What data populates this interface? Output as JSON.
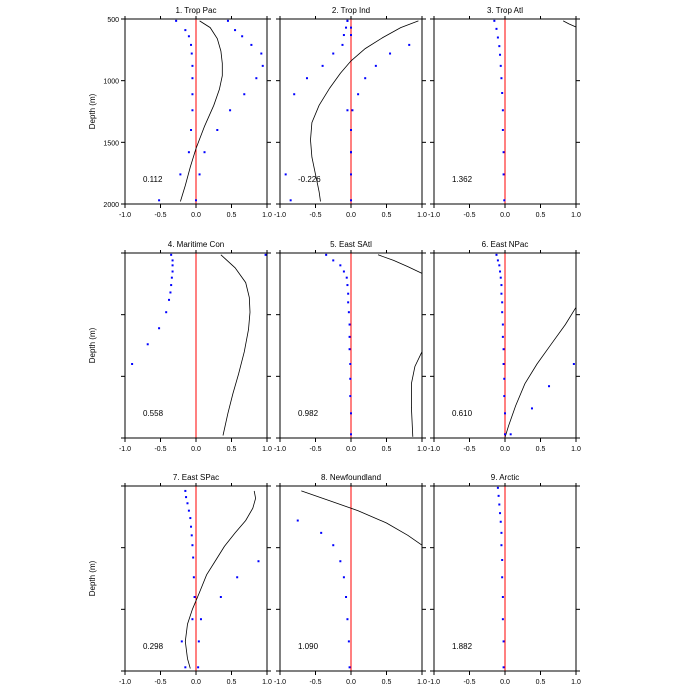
{
  "y_axis_title": "Depth (m)",
  "colors": {
    "zero_line": "#ff0000",
    "points": "#0000ff",
    "curve": "#000000"
  },
  "chart_data": [
    {
      "type": "scatter",
      "title": "1. Trop Pac",
      "annotation": "0.112",
      "xlim": [
        -1.0,
        1.0
      ],
      "ylim": [
        2000,
        500
      ],
      "xticks": [
        "-1.0",
        "-0.5",
        "0.0",
        "0.5",
        "1.0"
      ],
      "yticks": [
        "500",
        "1000",
        "1500",
        "2000"
      ],
      "ylabel": "Depth (m)",
      "points": [
        [
          -0.28,
          515
        ],
        [
          0.45,
          515
        ],
        [
          -0.15,
          590
        ],
        [
          0.55,
          590
        ],
        [
          -0.1,
          640
        ],
        [
          0.65,
          640
        ],
        [
          -0.07,
          710
        ],
        [
          0.78,
          710
        ],
        [
          -0.06,
          780
        ],
        [
          0.92,
          780
        ],
        [
          -0.05,
          880
        ],
        [
          0.94,
          880
        ],
        [
          -0.05,
          980
        ],
        [
          0.85,
          980
        ],
        [
          -0.05,
          1110
        ],
        [
          0.68,
          1110
        ],
        [
          -0.05,
          1240
        ],
        [
          0.48,
          1240
        ],
        [
          -0.07,
          1400
        ],
        [
          0.3,
          1400
        ],
        [
          -0.1,
          1580
        ],
        [
          0.12,
          1580
        ],
        [
          -0.22,
          1760
        ],
        [
          0.05,
          1760
        ],
        [
          -0.52,
          1970
        ],
        [
          0.0,
          1970
        ]
      ],
      "curve": [
        [
          0.05,
          515
        ],
        [
          0.2,
          570
        ],
        [
          0.3,
          660
        ],
        [
          0.35,
          760
        ],
        [
          0.37,
          860
        ],
        [
          0.37,
          960
        ],
        [
          0.33,
          1070
        ],
        [
          0.25,
          1200
        ],
        [
          0.12,
          1370
        ],
        [
          0.0,
          1550
        ],
        [
          -0.08,
          1700
        ],
        [
          -0.15,
          1850
        ],
        [
          -0.22,
          1980
        ]
      ]
    },
    {
      "type": "scatter",
      "title": "2. Trop Ind",
      "annotation": "-0.226",
      "xlim": [
        -1.0,
        1.0
      ],
      "ylim": [
        2000,
        500
      ],
      "xticks": [
        "-1.0",
        "-0.5",
        "0.0",
        "0.5",
        "1.0"
      ],
      "points": [
        [
          -0.05,
          515
        ],
        [
          -0.05,
          515
        ],
        [
          -0.07,
          570
        ],
        [
          0.0,
          570
        ],
        [
          -0.1,
          630
        ],
        [
          0.0,
          630
        ],
        [
          -0.12,
          710
        ],
        [
          0.82,
          710
        ],
        [
          -0.25,
          780
        ],
        [
          0.55,
          780
        ],
        [
          -0.4,
          880
        ],
        [
          0.35,
          880
        ],
        [
          -0.62,
          980
        ],
        [
          0.2,
          980
        ],
        [
          -0.8,
          1110
        ],
        [
          0.1,
          1110
        ],
        [
          -0.05,
          1240
        ],
        [
          0.02,
          1240
        ],
        [
          0.0,
          1400
        ],
        [
          0.0,
          1400
        ],
        [
          0.0,
          1580
        ],
        [
          0.0,
          1580
        ],
        [
          -0.92,
          1760
        ],
        [
          0.0,
          1760
        ],
        [
          -0.85,
          1970
        ],
        [
          0.0,
          1970
        ]
      ],
      "curve": [
        [
          0.95,
          515
        ],
        [
          0.7,
          570
        ],
        [
          0.45,
          650
        ],
        [
          0.2,
          740
        ],
        [
          0.0,
          840
        ],
        [
          -0.15,
          940
        ],
        [
          -0.3,
          1060
        ],
        [
          -0.45,
          1200
        ],
        [
          -0.55,
          1340
        ],
        [
          -0.57,
          1480
        ],
        [
          -0.55,
          1620
        ],
        [
          -0.5,
          1760
        ],
        [
          -0.45,
          1900
        ],
        [
          -0.43,
          1980
        ]
      ]
    },
    {
      "type": "scatter",
      "title": "3. Trop Atl",
      "annotation": "1.362",
      "xlim": [
        -1.0,
        1.0
      ],
      "ylim": [
        2000,
        500
      ],
      "xticks": [
        "-1.0",
        "-0.5",
        "0.0",
        "0.5",
        "1.0"
      ],
      "points": [
        [
          -0.15,
          515
        ],
        [
          -0.12,
          580
        ],
        [
          -0.1,
          650
        ],
        [
          -0.08,
          720
        ],
        [
          -0.07,
          790
        ],
        [
          -0.06,
          880
        ],
        [
          -0.05,
          980
        ],
        [
          -0.04,
          1100
        ],
        [
          -0.03,
          1240
        ],
        [
          -0.03,
          1400
        ],
        [
          -0.02,
          1580
        ],
        [
          -0.02,
          1760
        ],
        [
          -0.01,
          1970
        ]
      ],
      "curve": [
        [
          0.82,
          515
        ],
        [
          0.9,
          540
        ],
        [
          1.0,
          565
        ]
      ]
    },
    {
      "type": "scatter",
      "title": "4. Maritime Con",
      "annotation": "0.558",
      "xlim": [
        -1.0,
        1.0
      ],
      "ylim": [
        2000,
        500
      ],
      "xticks": [
        "-1.0",
        "-0.5",
        "0.0",
        "0.5",
        "1.0"
      ],
      "ylabel": "Depth (m)",
      "points": [
        [
          -0.35,
          515
        ],
        [
          -0.33,
          560
        ],
        [
          -0.33,
          600
        ],
        [
          -0.33,
          650
        ],
        [
          -0.34,
          700
        ],
        [
          -0.35,
          760
        ],
        [
          -0.36,
          820
        ],
        [
          -0.38,
          880
        ],
        [
          -0.42,
          980
        ],
        [
          -0.52,
          1110
        ],
        [
          -0.68,
          1240
        ],
        [
          -0.9,
          1400
        ],
        [
          0.98,
          515
        ]
      ],
      "curve": [
        [
          0.35,
          515
        ],
        [
          0.55,
          620
        ],
        [
          0.7,
          740
        ],
        [
          0.75,
          860
        ],
        [
          0.76,
          980
        ],
        [
          0.74,
          1120
        ],
        [
          0.68,
          1300
        ],
        [
          0.6,
          1480
        ],
        [
          0.52,
          1640
        ],
        [
          0.45,
          1800
        ],
        [
          0.38,
          1980
        ]
      ]
    },
    {
      "type": "scatter",
      "title": "5. East SAtl",
      "annotation": "0.982",
      "xlim": [
        -1.0,
        1.0
      ],
      "ylim": [
        2000,
        500
      ],
      "xticks": [
        "-1.0",
        "-0.5",
        "0.0",
        "0.5",
        "1.0"
      ],
      "points": [
        [
          -0.35,
          515
        ],
        [
          -0.25,
          560
        ],
        [
          -0.15,
          600
        ],
        [
          -0.1,
          650
        ],
        [
          -0.06,
          700
        ],
        [
          -0.05,
          760
        ],
        [
          -0.04,
          830
        ],
        [
          -0.04,
          900
        ],
        [
          -0.03,
          980
        ],
        [
          -0.02,
          1080
        ],
        [
          -0.02,
          1180
        ],
        [
          -0.02,
          1280
        ],
        [
          -0.01,
          1400
        ],
        [
          -0.01,
          1520
        ],
        [
          -0.01,
          1660
        ],
        [
          0.0,
          1800
        ],
        [
          0.0,
          1970
        ]
      ],
      "curve": [
        [
          0.38,
          515
        ],
        [
          0.6,
          560
        ],
        [
          0.8,
          610
        ],
        [
          1.0,
          665
        ]
      ],
      "curve2": [
        [
          1.0,
          1300
        ],
        [
          0.9,
          1420
        ],
        [
          0.85,
          1560
        ],
        [
          0.85,
          1750
        ],
        [
          0.87,
          1990
        ]
      ]
    },
    {
      "type": "scatter",
      "title": "6. East NPac",
      "annotation": "0.610",
      "xlim": [
        -1.0,
        1.0
      ],
      "ylim": [
        2000,
        500
      ],
      "xticks": [
        "-1.0",
        "-0.5",
        "0.0",
        "0.5",
        "1.0"
      ],
      "points": [
        [
          -0.12,
          515
        ],
        [
          -0.1,
          560
        ],
        [
          -0.08,
          600
        ],
        [
          -0.07,
          650
        ],
        [
          -0.06,
          700
        ],
        [
          -0.05,
          760
        ],
        [
          -0.05,
          830
        ],
        [
          -0.04,
          900
        ],
        [
          -0.04,
          980
        ],
        [
          -0.03,
          1080
        ],
        [
          -0.03,
          1180
        ],
        [
          -0.02,
          1280
        ],
        [
          -0.02,
          1400
        ],
        [
          -0.01,
          1520
        ],
        [
          -0.01,
          1660
        ],
        [
          0.0,
          1800
        ],
        [
          0.0,
          1970
        ],
        [
          0.97,
          1400
        ],
        [
          0.62,
          1580
        ],
        [
          0.38,
          1760
        ],
        [
          0.08,
          1970
        ]
      ],
      "curve": [
        [
          1.0,
          940
        ],
        [
          0.85,
          1080
        ],
        [
          0.65,
          1240
        ],
        [
          0.45,
          1400
        ],
        [
          0.28,
          1560
        ],
        [
          0.15,
          1740
        ],
        [
          0.05,
          1900
        ],
        [
          0.0,
          1995
        ]
      ]
    },
    {
      "type": "scatter",
      "title": "7. East SPac",
      "annotation": "0.298",
      "xlim": [
        -1.0,
        1.0
      ],
      "ylim": [
        2000,
        500
      ],
      "xticks": [
        "-1.0",
        "-0.5",
        "0.0",
        "0.5",
        "1.0"
      ],
      "ylabel": "Depth (m)",
      "points": [
        [
          -0.15,
          540
        ],
        [
          -0.14,
          590
        ],
        [
          -0.12,
          640
        ],
        [
          -0.1,
          700
        ],
        [
          -0.08,
          760
        ],
        [
          -0.07,
          830
        ],
        [
          -0.06,
          900
        ],
        [
          -0.05,
          980
        ],
        [
          -0.04,
          1080
        ],
        [
          0.88,
          1110
        ],
        [
          -0.03,
          1240
        ],
        [
          0.58,
          1240
        ],
        [
          -0.02,
          1400
        ],
        [
          0.35,
          1400
        ],
        [
          -0.05,
          1580
        ],
        [
          0.07,
          1580
        ],
        [
          -0.2,
          1760
        ],
        [
          0.04,
          1760
        ],
        [
          -0.15,
          1970
        ],
        [
          0.03,
          1970
        ]
      ],
      "curve": [
        [
          0.82,
          540
        ],
        [
          0.84,
          600
        ],
        [
          0.8,
          680
        ],
        [
          0.7,
          780
        ],
        [
          0.55,
          880
        ],
        [
          0.4,
          990
        ],
        [
          0.28,
          1100
        ],
        [
          0.15,
          1220
        ],
        [
          0.05,
          1360
        ],
        [
          -0.05,
          1500
        ],
        [
          -0.12,
          1620
        ],
        [
          -0.15,
          1760
        ],
        [
          -0.12,
          1900
        ],
        [
          -0.08,
          1980
        ]
      ]
    },
    {
      "type": "scatter",
      "title": "8. Newfoundland",
      "annotation": "1.090",
      "xlim": [
        -1.0,
        1.0
      ],
      "ylim": [
        2000,
        500
      ],
      "xticks": [
        "-1.0",
        "-0.5",
        "0.0",
        "0.5",
        "1.0"
      ],
      "points": [
        [
          -0.75,
          780
        ],
        [
          -0.42,
          880
        ],
        [
          -0.25,
          980
        ],
        [
          -0.15,
          1110
        ],
        [
          -0.1,
          1240
        ],
        [
          -0.07,
          1400
        ],
        [
          -0.05,
          1580
        ],
        [
          -0.03,
          1760
        ],
        [
          -0.02,
          1970
        ]
      ],
      "curve": [
        [
          -0.7,
          540
        ],
        [
          -0.3,
          620
        ],
        [
          0.1,
          700
        ],
        [
          0.5,
          800
        ],
        [
          0.8,
          900
        ],
        [
          1.0,
          980
        ]
      ]
    },
    {
      "type": "scatter",
      "title": "9. Arctic",
      "annotation": "1.882",
      "xlim": [
        -1.0,
        1.0
      ],
      "ylim": [
        2000,
        500
      ],
      "xticks": [
        "-1.0",
        "-0.5",
        "0.0",
        "0.5",
        "1.0"
      ],
      "points": [
        [
          -0.1,
          515
        ],
        [
          -0.09,
          580
        ],
        [
          -0.08,
          650
        ],
        [
          -0.07,
          720
        ],
        [
          -0.06,
          790
        ],
        [
          -0.05,
          880
        ],
        [
          -0.05,
          980
        ],
        [
          -0.04,
          1100
        ],
        [
          -0.04,
          1240
        ],
        [
          -0.03,
          1400
        ],
        [
          -0.03,
          1580
        ],
        [
          -0.02,
          1760
        ],
        [
          -0.02,
          1970
        ]
      ],
      "curve": []
    }
  ]
}
